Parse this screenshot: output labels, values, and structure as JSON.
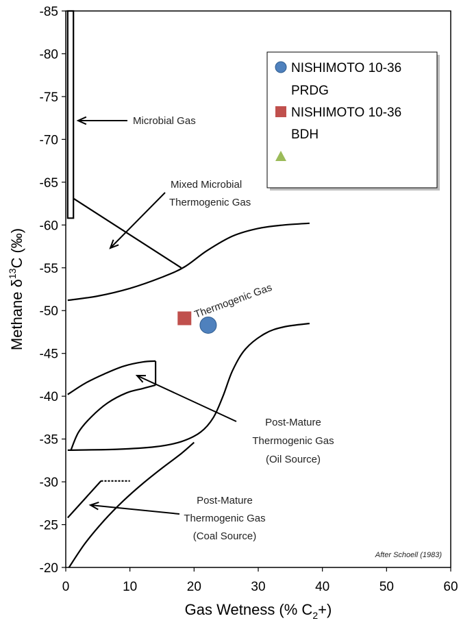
{
  "chart_data": {
    "type": "scatter",
    "xlabel": "Gas Wetness (% C",
    "xlabel_sub": "2",
    "xlabel_end": "+)",
    "ylabel_pre": "Methane  δ",
    "ylabel_sup": "13",
    "ylabel_post": "C (‰)",
    "xlim": [
      0,
      60
    ],
    "ylim": [
      -20,
      -85
    ],
    "x_ticks": [
      "0",
      "10",
      "20",
      "30",
      "40",
      "50",
      "60"
    ],
    "y_ticks": [
      "-85",
      "-80",
      "-75",
      "-70",
      "-65",
      "-60",
      "-55",
      "-50",
      "-45",
      "-40",
      "-35",
      "-30",
      "-25",
      "-20"
    ],
    "grid": false,
    "legend_position": "top-right",
    "series": [
      {
        "name_line1": "NISHIMOTO 10-36",
        "name_line2": "PRDG",
        "marker": "circle",
        "color": "#4F81BD",
        "points": [
          {
            "x": 22.2,
            "y": -48.3
          }
        ]
      },
      {
        "name_line1": "NISHIMOTO 10-36",
        "name_line2": "BDH",
        "marker": "square",
        "color": "#C0504D",
        "points": [
          {
            "x": 18.5,
            "y": -49.1
          }
        ]
      },
      {
        "name_line1": "",
        "name_line2": "",
        "marker": "triangle",
        "color": "#9BBB59",
        "points": []
      }
    ],
    "annotations": {
      "microbial": "Microbial Gas",
      "mixed_1": "Mixed Microbial",
      "mixed_2": "Thermogenic Gas",
      "thermogenic": "Thermogenic Gas",
      "oil_1": "Post-Mature",
      "oil_2": "Thermogenic Gas",
      "oil_3": "(Oil Source)",
      "coal_1": "Post-Mature",
      "coal_2": "Thermogenic Gas",
      "coal_3": "(Coal Source)",
      "credit": "After Schoell (1983)"
    },
    "boundaries": {
      "microbial_box": [
        [
          0.3,
          -85
        ],
        [
          1.2,
          -85
        ],
        [
          1.2,
          -60.8
        ],
        [
          0.3,
          -60.8
        ]
      ],
      "mixed_line": [
        [
          1.2,
          -63.1
        ],
        [
          18,
          -55
        ]
      ],
      "upper_sigmoid": [
        [
          0.3,
          -51.2
        ],
        [
          5,
          -51.7
        ],
        [
          10,
          -52.6
        ],
        [
          15,
          -53.9
        ],
        [
          18.5,
          -55.1
        ],
        [
          22,
          -57
        ],
        [
          26,
          -58.7
        ],
        [
          30,
          -59.6
        ],
        [
          34,
          -60
        ],
        [
          38,
          -60.2
        ]
      ],
      "lower_sigmoid": [
        [
          0.3,
          -33.7
        ],
        [
          8,
          -33.8
        ],
        [
          14,
          -34.1
        ],
        [
          18,
          -34.7
        ],
        [
          21,
          -35.8
        ],
        [
          23,
          -37.5
        ],
        [
          24.5,
          -40
        ],
        [
          26,
          -43
        ],
        [
          28,
          -45.5
        ],
        [
          31,
          -47.3
        ],
        [
          34,
          -48.1
        ],
        [
          38,
          -48.5
        ]
      ],
      "oil_box_top": [
        [
          0.3,
          -40.2
        ],
        [
          3,
          -41.5
        ],
        [
          6,
          -42.6
        ],
        [
          9,
          -43.5
        ],
        [
          12,
          -44
        ],
        [
          14,
          -44.1
        ]
      ],
      "oil_box_right": [
        [
          14,
          -44.1
        ],
        [
          14,
          -41.3
        ]
      ],
      "oil_box_bottom": [
        [
          0.8,
          -33.7
        ],
        [
          2,
          -35.8
        ],
        [
          4,
          -37.6
        ],
        [
          6.5,
          -39.2
        ],
        [
          9.5,
          -40.4
        ],
        [
          12,
          -40.9
        ],
        [
          14,
          -41.3
        ]
      ],
      "coal_upper": [
        [
          0.3,
          -25.8
        ],
        [
          5.5,
          -30.1
        ],
        [
          10,
          -30.1
        ]
      ],
      "coal_lower": [
        [
          0.5,
          -20
        ],
        [
          3,
          -22.8
        ],
        [
          6,
          -25.5
        ],
        [
          9,
          -27.8
        ],
        [
          12,
          -29.8
        ],
        [
          15,
          -31.6
        ],
        [
          18,
          -33.3
        ],
        [
          20,
          -34.6
        ]
      ]
    }
  }
}
